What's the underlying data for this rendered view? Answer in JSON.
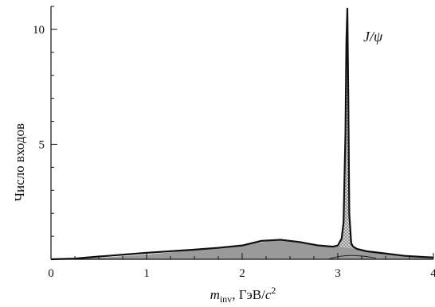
{
  "chart_data": {
    "type": "area",
    "title": "",
    "xlabel": {
      "symbol": "m",
      "subscript": "inv",
      "units": ", ГэВ/",
      "c": "c",
      "power": "2"
    },
    "ylabel": "Число входов",
    "xlim": [
      0,
      4
    ],
    "ylim": [
      0,
      11
    ],
    "x_ticks": [
      "0",
      "1",
      "2",
      "3",
      "4"
    ],
    "y_ticks": [
      "5",
      "10"
    ],
    "grid": false,
    "annotation": "J/ψ",
    "colors": {
      "area": "#9a9a9a",
      "peak_fill": "#dedede",
      "line": "#111111"
    },
    "series": [
      {
        "x": [
          0,
          0.25,
          0.5,
          0.75,
          1.0,
          1.25,
          1.5,
          1.75,
          2.0,
          2.2,
          2.4,
          2.6,
          2.8,
          2.95,
          3.0,
          3.04,
          3.06,
          3.08,
          3.09,
          3.1,
          3.11,
          3.12,
          3.14,
          3.16,
          3.2,
          3.3,
          3.5,
          3.7,
          3.9,
          4.0
        ],
        "values": [
          0.0,
          0.03,
          0.12,
          0.2,
          0.28,
          0.35,
          0.42,
          0.5,
          0.6,
          0.8,
          0.85,
          0.75,
          0.6,
          0.55,
          0.6,
          0.9,
          1.6,
          5.5,
          9.5,
          10.9,
          7.0,
          2.0,
          0.7,
          0.55,
          0.45,
          0.35,
          0.25,
          0.15,
          0.1,
          0.08
        ]
      }
    ]
  }
}
